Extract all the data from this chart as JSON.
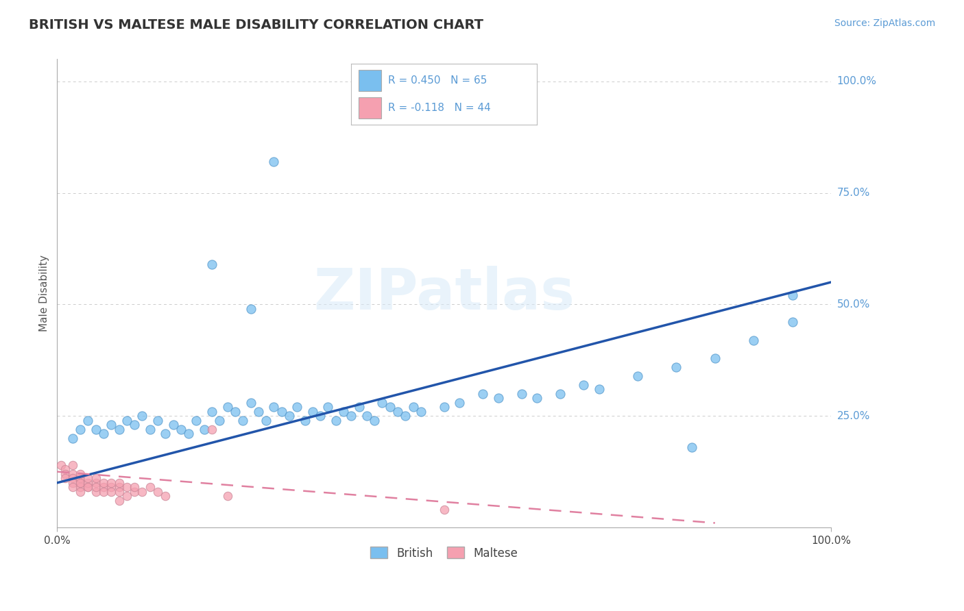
{
  "title": "BRITISH VS MALTESE MALE DISABILITY CORRELATION CHART",
  "source_text": "Source: ZipAtlas.com",
  "ylabel": "Male Disability",
  "xlim": [
    0,
    1.0
  ],
  "ylim": [
    0,
    1.05
  ],
  "grid_color": "#cccccc",
  "background_color": "#ffffff",
  "watermark_text": "ZIPatlas",
  "british_color": "#7abfef",
  "maltese_color": "#f5a0b0",
  "british_line_color": "#2255aa",
  "maltese_line_color": "#e080a0",
  "british_scatter_x": [
    0.02,
    0.03,
    0.04,
    0.05,
    0.06,
    0.07,
    0.08,
    0.09,
    0.1,
    0.11,
    0.12,
    0.13,
    0.14,
    0.15,
    0.16,
    0.17,
    0.18,
    0.19,
    0.2,
    0.21,
    0.22,
    0.23,
    0.24,
    0.25,
    0.26,
    0.27,
    0.28,
    0.29,
    0.3,
    0.31,
    0.32,
    0.33,
    0.34,
    0.35,
    0.36,
    0.37,
    0.38,
    0.39,
    0.4,
    0.41,
    0.42,
    0.43,
    0.44,
    0.45,
    0.46,
    0.47,
    0.5,
    0.52,
    0.55,
    0.57,
    0.6,
    0.62,
    0.65,
    0.68,
    0.7,
    0.75,
    0.8,
    0.85,
    0.9,
    0.95,
    0.95,
    0.2,
    0.25,
    0.82,
    0.28
  ],
  "british_scatter_y": [
    0.2,
    0.22,
    0.24,
    0.22,
    0.21,
    0.23,
    0.22,
    0.24,
    0.23,
    0.25,
    0.22,
    0.24,
    0.21,
    0.23,
    0.22,
    0.21,
    0.24,
    0.22,
    0.26,
    0.24,
    0.27,
    0.26,
    0.24,
    0.28,
    0.26,
    0.24,
    0.27,
    0.26,
    0.25,
    0.27,
    0.24,
    0.26,
    0.25,
    0.27,
    0.24,
    0.26,
    0.25,
    0.27,
    0.25,
    0.24,
    0.28,
    0.27,
    0.26,
    0.25,
    0.27,
    0.26,
    0.27,
    0.28,
    0.3,
    0.29,
    0.3,
    0.29,
    0.3,
    0.32,
    0.31,
    0.34,
    0.36,
    0.38,
    0.42,
    0.46,
    0.52,
    0.59,
    0.49,
    0.18,
    0.82
  ],
  "maltese_scatter_x": [
    0.005,
    0.01,
    0.01,
    0.01,
    0.02,
    0.02,
    0.02,
    0.02,
    0.02,
    0.03,
    0.03,
    0.03,
    0.03,
    0.03,
    0.03,
    0.04,
    0.04,
    0.04,
    0.04,
    0.05,
    0.05,
    0.05,
    0.05,
    0.06,
    0.06,
    0.06,
    0.07,
    0.07,
    0.07,
    0.08,
    0.08,
    0.08,
    0.09,
    0.09,
    0.1,
    0.1,
    0.11,
    0.12,
    0.13,
    0.14,
    0.2,
    0.22,
    0.5,
    0.08
  ],
  "maltese_scatter_y": [
    0.14,
    0.13,
    0.12,
    0.11,
    0.12,
    0.11,
    0.1,
    0.09,
    0.14,
    0.1,
    0.11,
    0.09,
    0.1,
    0.12,
    0.08,
    0.09,
    0.1,
    0.11,
    0.09,
    0.1,
    0.08,
    0.09,
    0.11,
    0.09,
    0.1,
    0.08,
    0.09,
    0.1,
    0.08,
    0.09,
    0.1,
    0.08,
    0.09,
    0.07,
    0.08,
    0.09,
    0.08,
    0.09,
    0.08,
    0.07,
    0.22,
    0.07,
    0.04,
    0.06
  ],
  "british_line_x0": 0.0,
  "british_line_x1": 1.0,
  "british_line_y0": 0.1,
  "british_line_y1": 0.55,
  "maltese_line_x0": 0.0,
  "maltese_line_x1": 0.85,
  "maltese_line_y0": 0.125,
  "maltese_line_y1": 0.01,
  "legend_british_text": "R = 0.450   N = 65",
  "legend_maltese_text": "R = -0.118   N = 44",
  "legend_british_label": "British",
  "legend_maltese_label": "Maltese"
}
